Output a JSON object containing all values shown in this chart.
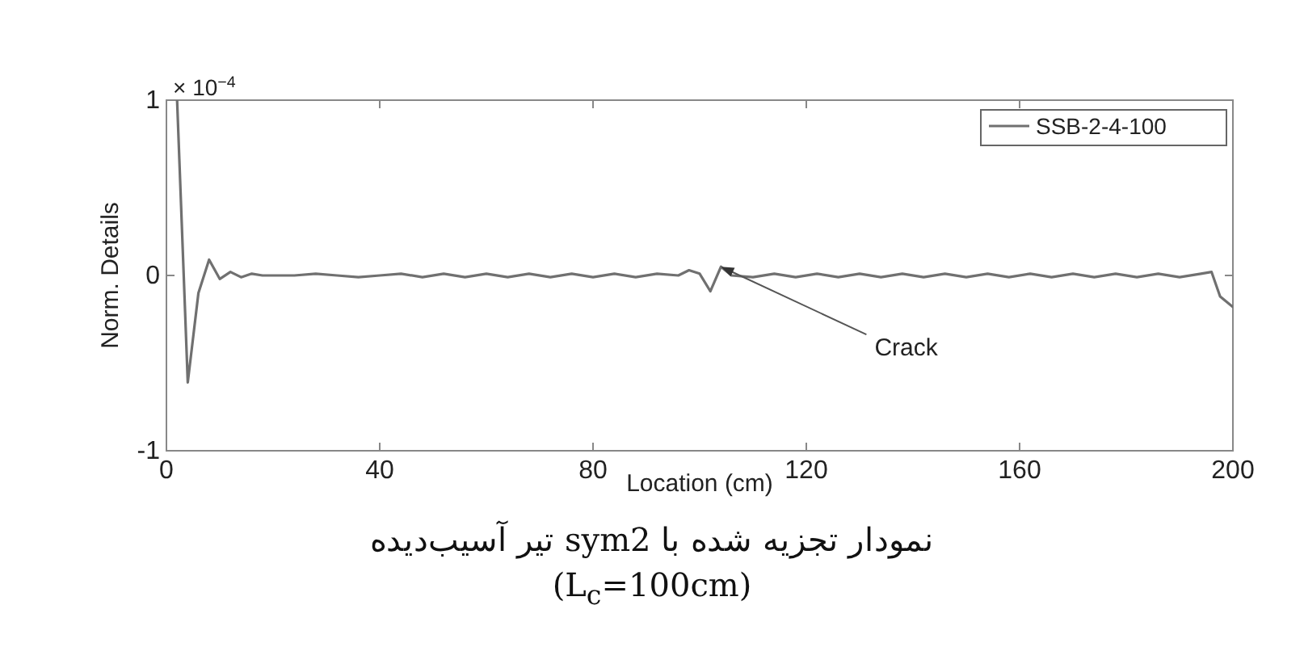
{
  "chart_data": {
    "type": "line",
    "ylabel": "Norm. Details",
    "xlabel": "Location (cm)",
    "xlim": [
      0,
      200
    ],
    "xticks": [
      0,
      40,
      80,
      120,
      160,
      200
    ],
    "ylim": [
      -1,
      1
    ],
    "yticks": [
      -1,
      0,
      1
    ],
    "series": [
      {
        "name": "SSB-2-4-100",
        "color": "#707070",
        "x": [
          2,
          4,
          6,
          8,
          10,
          12,
          14,
          16,
          18,
          20,
          24,
          28,
          32,
          36,
          40,
          44,
          48,
          52,
          56,
          60,
          64,
          68,
          72,
          76,
          80,
          84,
          88,
          92,
          96,
          98,
          100,
          102,
          104,
          106,
          110,
          114,
          118,
          122,
          126,
          130,
          134,
          138,
          142,
          146,
          150,
          154,
          158,
          162,
          166,
          170,
          174,
          178,
          182,
          186,
          190,
          194,
          196,
          197.6,
          200
        ],
        "values": [
          1,
          -0.61,
          -0.1,
          0.09,
          -0.02,
          0.02,
          -0.01,
          0.01,
          0,
          0,
          0,
          0.01,
          0,
          -0.01,
          0,
          0.01,
          -0.01,
          0.01,
          -0.01,
          0.01,
          -0.01,
          0.01,
          -0.01,
          0.01,
          -0.01,
          0.01,
          -0.01,
          0.01,
          0,
          0.03,
          0.01,
          -0.09,
          0.05,
          0,
          -0.01,
          0.01,
          -0.01,
          0.01,
          -0.01,
          0.01,
          -0.01,
          0.01,
          -0.01,
          0.01,
          -0.01,
          0.01,
          -0.01,
          0.01,
          -0.01,
          0.01,
          -0.01,
          0.01,
          -0.01,
          0.01,
          -0.01,
          0.01,
          0.02,
          -0.12,
          -0.18
        ]
      }
    ],
    "legend": "top right",
    "grid": false,
    "annotations": [
      "× 10$^{−4}$",
      {
        "text": "Crack",
        "x": 104,
        "y": 0.05
      },
      "نمودار تجزیه شده با sym2 تیر آسیب‌دیده",
      "(L$_{c}$=100cm)"
    ]
  }
}
